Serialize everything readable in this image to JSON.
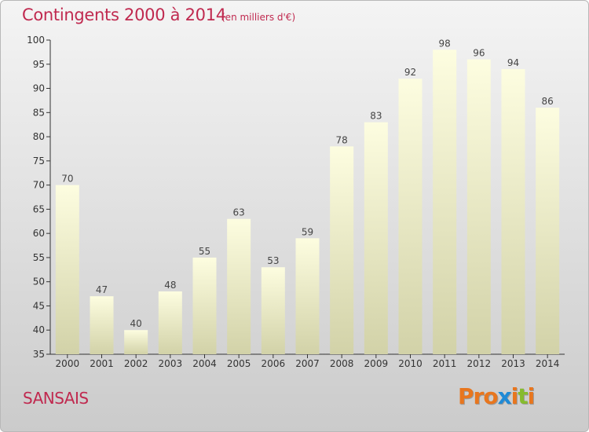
{
  "header": {
    "title": "Contingents 2000 à 2014",
    "subtitle": "(en milliers d'€)"
  },
  "footer": {
    "commune": "SANSAIS",
    "logo": "Proxiti"
  },
  "colors": {
    "title": "#c0294f",
    "bar_top": "#fdfde0",
    "bar_bottom": "#d2d2a8",
    "axis": "#333333",
    "logo_letters": [
      "#e8761e",
      "#e8761e",
      "#e8761e",
      "#1f8ad6",
      "#e8761e",
      "#86bb2f",
      "#e8761e"
    ]
  },
  "chart_data": {
    "type": "bar",
    "title": "Contingents 2000 à 2014",
    "subtitle": "(en milliers d'€)",
    "xlabel": "",
    "ylabel": "",
    "categories": [
      "2000",
      "2001",
      "2002",
      "2003",
      "2004",
      "2005",
      "2006",
      "2007",
      "2008",
      "2009",
      "2010",
      "2011",
      "2012",
      "2013",
      "2014"
    ],
    "values": [
      70,
      47,
      40,
      48,
      55,
      63,
      53,
      59,
      78,
      83,
      92,
      98,
      96,
      94,
      86
    ],
    "ylim": [
      35,
      100
    ],
    "yticks": [
      35,
      40,
      45,
      50,
      55,
      60,
      65,
      70,
      75,
      80,
      85,
      90,
      95,
      100
    ],
    "grid": false,
    "legend": "none"
  }
}
